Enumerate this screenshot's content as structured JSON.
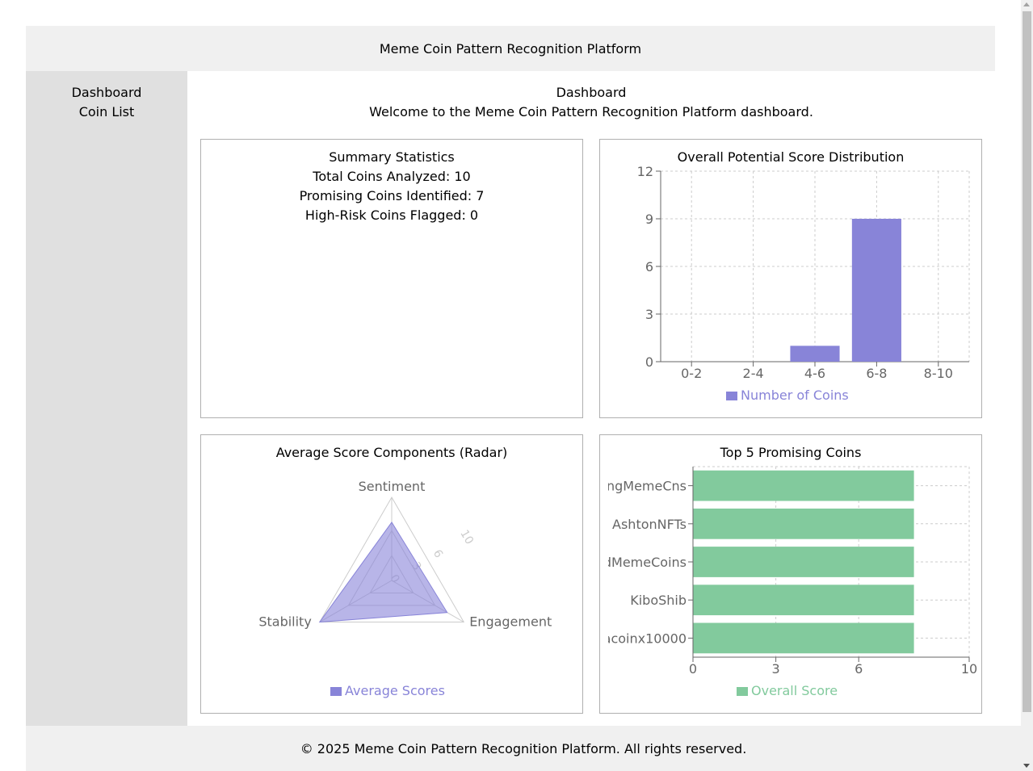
{
  "header": {
    "title": "Meme Coin Pattern Recognition Platform"
  },
  "sidebar": {
    "items": [
      {
        "label": "Dashboard"
      },
      {
        "label": "Coin List"
      }
    ]
  },
  "main": {
    "title": "Dashboard",
    "welcome": "Welcome to the Meme Coin Pattern Recognition Platform dashboard."
  },
  "summary": {
    "title": "Summary Statistics",
    "total": "Total Coins Analyzed: 10",
    "promising": "Promising Coins Identified: 7",
    "high_risk": "High-Risk Coins Flagged: 0"
  },
  "footer": {
    "text": "© 2025 Meme Coin Pattern Recognition Platform. All rights reserved."
  },
  "colors": {
    "bar": "#8884d8",
    "green": "#82ca9d",
    "grid": "#cccccc",
    "axis": "#666666"
  },
  "chart_data": [
    {
      "type": "bar",
      "title": "Overall Potential Score Distribution",
      "categories": [
        "0-2",
        "2-4",
        "4-6",
        "6-8",
        "8-10"
      ],
      "series": [
        {
          "name": "Number of Coins",
          "values": [
            0,
            0,
            1,
            9,
            0
          ]
        }
      ],
      "yticks": [
        "0",
        "3",
        "6",
        "9",
        "12"
      ],
      "ylim": [
        0,
        12
      ],
      "grid": true,
      "legend": "bottom"
    },
    {
      "type": "radar",
      "title": "Average Score Components (Radar)",
      "axes": [
        "Sentiment",
        "Engagement",
        "Stability"
      ],
      "series": [
        {
          "name": "Average Scores",
          "values": [
            7,
            7.7,
            10
          ]
        }
      ],
      "rticks": [
        "0",
        "3",
        "6",
        "10"
      ],
      "rlim": [
        0,
        10
      ],
      "legend": "bottom"
    },
    {
      "type": "bar",
      "orientation": "horizontal",
      "title": "Top 5 Promising Coins",
      "categories": [
        "ngMemeCns",
        "AshtonNFTs",
        "dMemeCoins",
        "KiboShib",
        "acoinx10000"
      ],
      "series": [
        {
          "name": "Overall Score",
          "values": [
            8,
            8,
            8,
            8,
            8
          ]
        }
      ],
      "xticks": [
        "0",
        "3",
        "6",
        "10"
      ],
      "xlim": [
        0,
        10
      ],
      "grid": true,
      "legend": "bottom"
    }
  ]
}
